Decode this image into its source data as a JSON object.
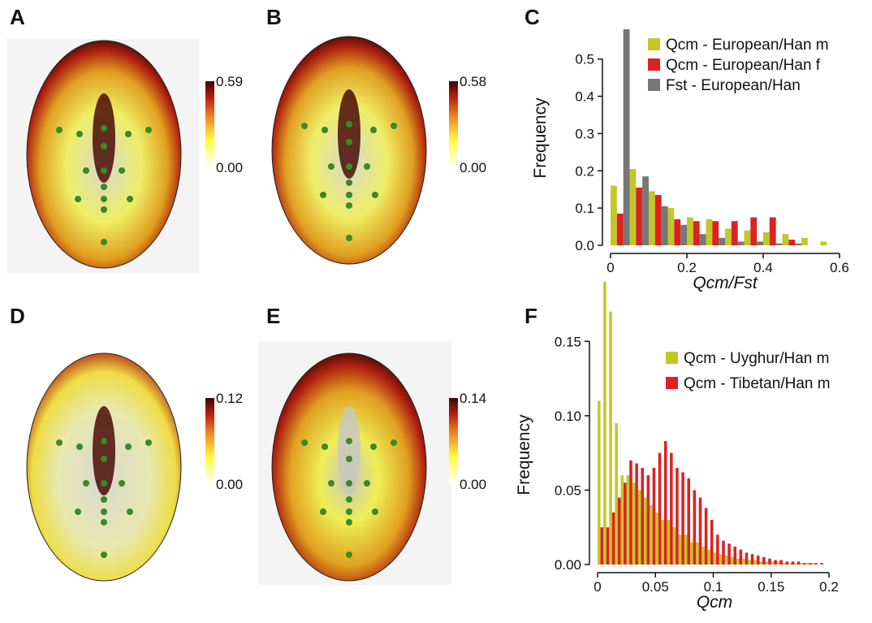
{
  "panel_labels": [
    "A",
    "B",
    "C",
    "D",
    "E",
    "F"
  ],
  "face_scales": [
    {
      "max": "0.59",
      "min": "0.00"
    },
    {
      "max": "0.58",
      "min": "0.00"
    },
    {
      "max": "0.12",
      "min": "0.00"
    },
    {
      "max": "0.14",
      "min": "0.00"
    }
  ],
  "chart_data": [
    {
      "type": "histogram",
      "x_label": "Qcm/Fst",
      "y_label": "Frequency",
      "bins": [
        0,
        0.05,
        0.1,
        0.15,
        0.2,
        0.25,
        0.3,
        0.35,
        0.4,
        0.45,
        0.5,
        0.55,
        0.6
      ],
      "series": [
        {
          "name": "Qcm - European/Han m",
          "color": "#c3c828",
          "values": [
            0.16,
            0.205,
            0.145,
            0.1,
            0.075,
            0.07,
            0.045,
            0.04,
            0.035,
            0.03,
            0.02,
            0.01
          ]
        },
        {
          "name": "Qcm - European/Han f",
          "color": "#dd2222",
          "values": [
            0.085,
            0.155,
            0.135,
            0.07,
            0.065,
            0.065,
            0.065,
            0.075,
            0.075,
            0.015,
            0,
            0
          ]
        },
        {
          "name": "Fst - European/Han",
          "color": "#777777",
          "values": [
            0.58,
            0.185,
            0.105,
            0.055,
            0.03,
            0.02,
            0.01,
            0.01,
            0.005,
            0.005,
            0,
            0
          ]
        }
      ],
      "xlim": [
        0,
        0.6
      ],
      "ylim": [
        0,
        0.58
      ],
      "xticks": [
        0,
        0.2,
        0.4,
        0.6
      ],
      "yticks": [
        {
          "value": 0,
          "label": "0.0"
        },
        {
          "value": 0.1,
          "label": "0.1"
        },
        {
          "value": 0.2,
          "label": "0.2"
        },
        {
          "value": 0.3,
          "label": "0.3"
        },
        {
          "value": 0.4,
          "label": "0.4"
        },
        {
          "value": 0.5,
          "label": "0.5"
        }
      ]
    },
    {
      "type": "histogram",
      "x_label": "Qcm",
      "y_label": "Frequency",
      "bins": [
        0,
        0.005,
        0.01,
        0.015,
        0.02,
        0.025,
        0.03,
        0.035,
        0.04,
        0.045,
        0.05,
        0.055,
        0.06,
        0.065,
        0.07,
        0.075,
        0.08,
        0.085,
        0.09,
        0.095,
        0.1,
        0.105,
        0.11,
        0.115,
        0.12,
        0.125,
        0.13,
        0.135,
        0.14,
        0.145,
        0.15,
        0.155,
        0.16,
        0.165,
        0.17,
        0.175,
        0.18,
        0.185,
        0.19,
        0.195,
        0.2,
        0.205,
        0.21
      ],
      "series": [
        {
          "name": "Qcm - Uyghur/Han m",
          "color": "#c3c828",
          "values": [
            0.11,
            0.19,
            0.17,
            0.095,
            0.06,
            0.06,
            0.055,
            0.05,
            0.045,
            0.04,
            0.035,
            0.03,
            0.03,
            0.025,
            0.02,
            0.02,
            0.015,
            0.015,
            0.012,
            0.01,
            0.008,
            0.007,
            0.006,
            0.005,
            0.004,
            0.004,
            0.003,
            0.003,
            0.002,
            0.002,
            0.002,
            0.002,
            0.001,
            0.001,
            0.001,
            0.001,
            0.001,
            0.001,
            0,
            0,
            0,
            0
          ]
        },
        {
          "name": "Qcm - Tibetan/Han m",
          "color": "#dd2222",
          "values": [
            0.025,
            0.025,
            0.035,
            0.045,
            0.055,
            0.07,
            0.068,
            0.065,
            0.06,
            0.065,
            0.075,
            0.083,
            0.075,
            0.065,
            0.062,
            0.058,
            0.05,
            0.045,
            0.038,
            0.03,
            0.02,
            0.016,
            0.014,
            0.012,
            0.01,
            0.008,
            0.007,
            0.006,
            0.005,
            0.004,
            0.003,
            0.003,
            0.002,
            0.002,
            0.002,
            0.001,
            0.001,
            0.001,
            0.001,
            0,
            0,
            0
          ]
        }
      ],
      "xlim": [
        0,
        0.2
      ],
      "ylim": [
        0,
        0.19
      ],
      "xticks": [
        0,
        0.05,
        0.1,
        0.15,
        0.2
      ],
      "yticks": [
        {
          "value": 0,
          "label": "0.00"
        },
        {
          "value": 0.05,
          "label": "0.05"
        },
        {
          "value": 0.1,
          "label": "0.10"
        },
        {
          "value": 0.15,
          "label": "0.15"
        }
      ]
    }
  ]
}
